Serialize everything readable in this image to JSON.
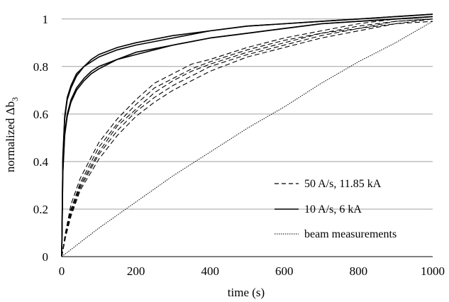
{
  "chart_data": {
    "type": "line",
    "xlabel": "time (s)",
    "ylabel_main": "normalized Δb",
    "ylabel_sub": "3",
    "xlim": [
      0,
      1000
    ],
    "ylim": [
      0,
      1.05
    ],
    "x_ticks": [
      0,
      200,
      400,
      600,
      800,
      1000
    ],
    "y_ticks": [
      0,
      0.2,
      0.4,
      0.6,
      0.8,
      1
    ],
    "x_tick_labels": [
      "0",
      "200",
      "400",
      "600",
      "800",
      "1000"
    ],
    "y_tick_labels": [
      "0",
      "0.2",
      "0.4",
      "0.6",
      "0.8",
      "1"
    ],
    "grid": "horizontal",
    "legend_position": "bottom-right",
    "series": [
      {
        "name": "50 A/s, 11.85 kA",
        "style": "dashed",
        "color": "#000000",
        "x": [
          0,
          10,
          25,
          50,
          100,
          150,
          200,
          250,
          300,
          350,
          400,
          500,
          600,
          700,
          800,
          900,
          1000
        ],
        "curves": [
          [
            0,
            0.1,
            0.22,
            0.33,
            0.48,
            0.58,
            0.66,
            0.73,
            0.77,
            0.81,
            0.83,
            0.88,
            0.92,
            0.95,
            0.98,
            1.0,
            1.01
          ],
          [
            0,
            0.09,
            0.2,
            0.31,
            0.46,
            0.56,
            0.64,
            0.71,
            0.75,
            0.79,
            0.82,
            0.87,
            0.91,
            0.94,
            0.97,
            0.99,
            1.0
          ],
          [
            0,
            0.09,
            0.19,
            0.3,
            0.44,
            0.55,
            0.62,
            0.69,
            0.74,
            0.78,
            0.81,
            0.86,
            0.9,
            0.94,
            0.96,
            0.99,
            1.0
          ],
          [
            0,
            0.08,
            0.18,
            0.29,
            0.43,
            0.53,
            0.61,
            0.67,
            0.72,
            0.76,
            0.8,
            0.85,
            0.89,
            0.93,
            0.96,
            0.98,
            1.0
          ],
          [
            0,
            0.08,
            0.17,
            0.28,
            0.41,
            0.51,
            0.59,
            0.65,
            0.7,
            0.74,
            0.78,
            0.84,
            0.88,
            0.92,
            0.95,
            0.98,
            0.99
          ]
        ]
      },
      {
        "name": "10 A/s, 6 kA",
        "style": "solid",
        "color": "#000000",
        "x": [
          0,
          3,
          8,
          15,
          25,
          40,
          60,
          80,
          100,
          150,
          200,
          300,
          400,
          500,
          600,
          700,
          800,
          900,
          1000
        ],
        "curves": [
          [
            0,
            0.42,
            0.59,
            0.67,
            0.72,
            0.77,
            0.8,
            0.83,
            0.85,
            0.88,
            0.9,
            0.93,
            0.95,
            0.97,
            0.98,
            0.99,
            1.0,
            1.01,
            1.02
          ],
          [
            0,
            0.41,
            0.58,
            0.66,
            0.71,
            0.76,
            0.8,
            0.82,
            0.84,
            0.87,
            0.89,
            0.92,
            0.95,
            0.97,
            0.98,
            0.99,
            1.0,
            1.01,
            1.02
          ],
          [
            0,
            0.36,
            0.52,
            0.6,
            0.66,
            0.71,
            0.75,
            0.78,
            0.8,
            0.83,
            0.86,
            0.89,
            0.92,
            0.94,
            0.96,
            0.98,
            0.99,
            1.0,
            1.01
          ],
          [
            0,
            0.35,
            0.51,
            0.59,
            0.65,
            0.7,
            0.74,
            0.77,
            0.79,
            0.83,
            0.85,
            0.89,
            0.92,
            0.94,
            0.96,
            0.98,
            0.99,
            1.0,
            1.01
          ]
        ]
      },
      {
        "name": "beam measurements",
        "style": "dotted",
        "color": "#000000",
        "x": [
          0,
          100,
          200,
          300,
          400,
          500,
          600,
          700,
          800,
          900,
          1000
        ],
        "curves": [
          [
            0,
            0.12,
            0.23,
            0.34,
            0.44,
            0.54,
            0.63,
            0.73,
            0.82,
            0.9,
            0.99
          ]
        ]
      }
    ]
  }
}
